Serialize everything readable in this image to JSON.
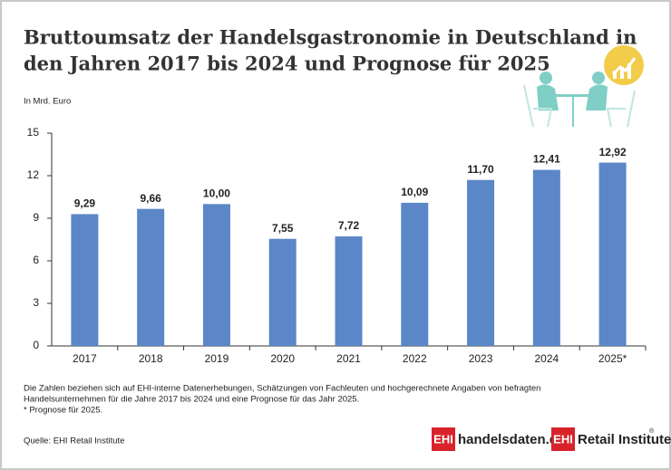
{
  "chart_data": {
    "type": "bar",
    "title": "Bruttoumsatz der Handelsgastronomie in Deutschland in",
    "title_line2": "den Jahren 2017 bis 2024 und Prognose für 2025",
    "y_axis_label": "In Mrd. Euro",
    "categories": [
      "2017",
      "2018",
      "2019",
      "2020",
      "2021",
      "2022",
      "2023",
      "2024",
      "2025*"
    ],
    "values": [
      9.29,
      9.66,
      10.0,
      7.55,
      7.72,
      10.09,
      11.7,
      12.41,
      12.92
    ],
    "value_labels": [
      "9,29",
      "9,66",
      "10,00",
      "7,55",
      "7,72",
      "10,09",
      "11,70",
      "12,41",
      "12,92"
    ],
    "color": "#5b87c8",
    "ylim": [
      0,
      15
    ],
    "yticks": [
      0,
      3,
      6,
      9,
      12,
      15
    ],
    "grid": false
  },
  "footnote": [
    "Die Zahlen beziehen sich auf EHI-interne Datenerhebungen, Schätzungen von Fachleuten und hochgerechnete Angaben von befragten",
    "Handelsunternehmen für die Jahre 2017 bis 2024 und eine Prognose für das Jahr 2025.",
    "* Prognose für 2025."
  ],
  "source": "Quelle: EHI Retail Institute",
  "logos": {
    "first_box": "EHI",
    "first_text": "handelsdaten.de",
    "second_box": "EHI",
    "second_text": "Retail Institute",
    "mark": "®"
  }
}
